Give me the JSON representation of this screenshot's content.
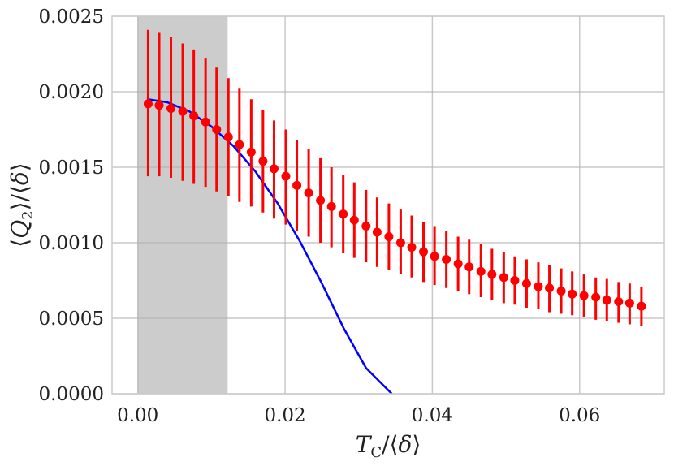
{
  "chart_data": {
    "type": "scatter",
    "title": "",
    "xlabel": "T_C/⟨δ⟩",
    "ylabel": "⟨Q_2⟩/⟨δ⟩",
    "xlim": [
      -0.0035,
      0.0715
    ],
    "ylim": [
      0.0,
      0.0025
    ],
    "x_ticks": [
      0.0,
      0.02,
      0.04,
      0.06
    ],
    "x_tick_labels": [
      "0.00",
      "0.02",
      "0.04",
      "0.06"
    ],
    "y_ticks": [
      0.0,
      0.0005,
      0.001,
      0.0015,
      0.002,
      0.0025
    ],
    "y_tick_labels": [
      "0.0000",
      "0.0005",
      "0.0010",
      "0.0015",
      "0.0020",
      "0.0025"
    ],
    "grid": true,
    "shaded_region": {
      "x_start": 0.0,
      "x_end": 0.0122,
      "color": "#cccccc"
    },
    "series": [
      {
        "kind": "points_with_errorbars",
        "color": "#ff0000",
        "x": [
          0.0014,
          0.0029,
          0.0045,
          0.0061,
          0.0076,
          0.0092,
          0.0107,
          0.0123,
          0.0138,
          0.0154,
          0.017,
          0.0185,
          0.0201,
          0.0216,
          0.0232,
          0.0248,
          0.0263,
          0.0279,
          0.0294,
          0.031,
          0.0325,
          0.0341,
          0.0357,
          0.0372,
          0.0388,
          0.0403,
          0.0419,
          0.0435,
          0.045,
          0.0466,
          0.0481,
          0.0497,
          0.0512,
          0.0528,
          0.0544,
          0.0559,
          0.0575,
          0.059,
          0.0606,
          0.0622,
          0.0637,
          0.0653,
          0.0668,
          0.0684
        ],
        "y": [
          0.00192,
          0.00191,
          0.00189,
          0.00187,
          0.00184,
          0.0018,
          0.00175,
          0.0017,
          0.00165,
          0.0016,
          0.00154,
          0.00149,
          0.00144,
          0.00138,
          0.00133,
          0.00128,
          0.00124,
          0.00119,
          0.00115,
          0.00111,
          0.00107,
          0.00104,
          0.001,
          0.00097,
          0.00094,
          0.00091,
          0.00089,
          0.00086,
          0.00084,
          0.00081,
          0.00079,
          0.00077,
          0.00075,
          0.00073,
          0.00071,
          0.0007,
          0.00068,
          0.00066,
          0.00065,
          0.00064,
          0.00062,
          0.00061,
          0.0006,
          0.00058
        ],
        "y_lower": [
          0.00144,
          0.00144,
          0.00143,
          0.00141,
          0.00139,
          0.00137,
          0.00134,
          0.00131,
          0.00127,
          0.00124,
          0.0012,
          0.00116,
          0.00112,
          0.00108,
          0.00104,
          0.001,
          0.00097,
          0.00093,
          0.0009,
          0.00087,
          0.00084,
          0.00082,
          0.00079,
          0.00077,
          0.00074,
          0.00072,
          0.0007,
          0.00068,
          0.00066,
          0.00064,
          0.00062,
          0.0006,
          0.00059,
          0.00057,
          0.00056,
          0.00054,
          0.00053,
          0.00052,
          0.00051,
          0.00049,
          0.00048,
          0.00047,
          0.00046,
          0.00045
        ],
        "y_upper": [
          0.00241,
          0.00239,
          0.00236,
          0.00232,
          0.00228,
          0.00222,
          0.00216,
          0.00209,
          0.00202,
          0.00195,
          0.00188,
          0.00181,
          0.00175,
          0.00168,
          0.00162,
          0.00156,
          0.0015,
          0.00145,
          0.0014,
          0.00135,
          0.0013,
          0.00126,
          0.00122,
          0.00118,
          0.00114,
          0.00111,
          0.00108,
          0.00104,
          0.00102,
          0.00099,
          0.00096,
          0.00094,
          0.00091,
          0.00089,
          0.00087,
          0.00085,
          0.00083,
          0.00081,
          0.00079,
          0.00077,
          0.00076,
          0.00074,
          0.00073,
          0.00071
        ]
      },
      {
        "kind": "line",
        "color": "#0000ff",
        "x": [
          0.0014,
          0.004,
          0.007,
          0.01,
          0.013,
          0.016,
          0.019,
          0.022,
          0.025,
          0.028,
          0.031,
          0.0345
        ],
        "y": [
          0.00195,
          0.00193,
          0.00187,
          0.00177,
          0.00164,
          0.00147,
          0.00126,
          0.00101,
          0.00073,
          0.00043,
          0.00017,
          0.0
        ]
      }
    ]
  }
}
